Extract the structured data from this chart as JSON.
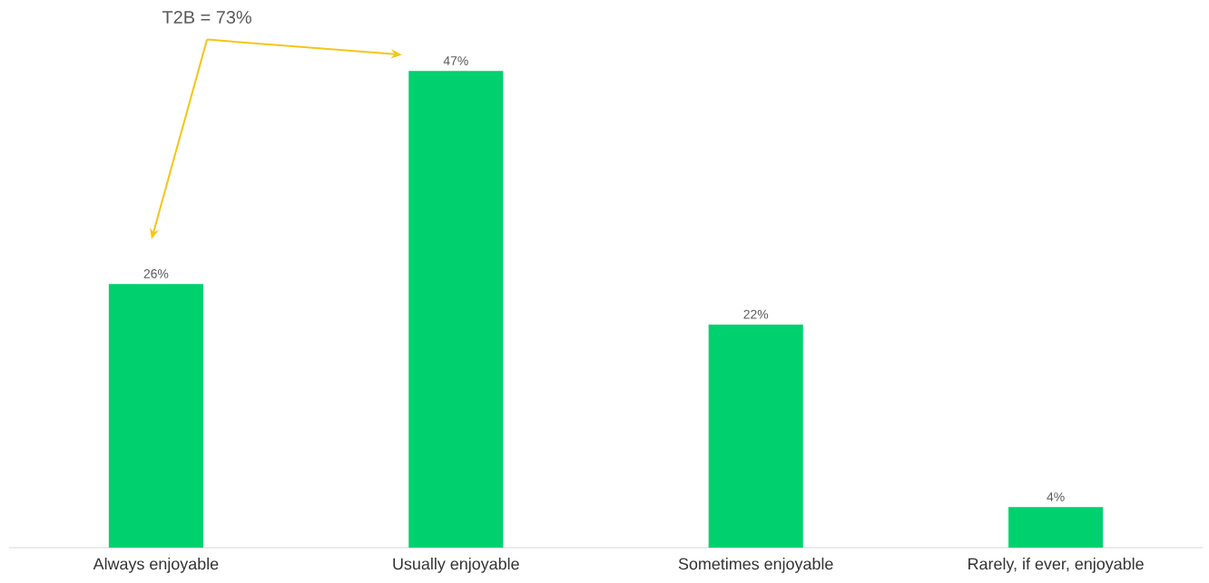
{
  "chart_data": {
    "type": "bar",
    "categories": [
      "Always enjoyable",
      "Usually enjoyable",
      "Sometimes enjoyable",
      "Rarely, if ever, enjoyable"
    ],
    "values": [
      26,
      47,
      22,
      4
    ],
    "value_labels": [
      "26%",
      "47%",
      "22%",
      "4%"
    ],
    "color": "#00d16f",
    "annotations": [
      "T2B = 73%"
    ]
  }
}
